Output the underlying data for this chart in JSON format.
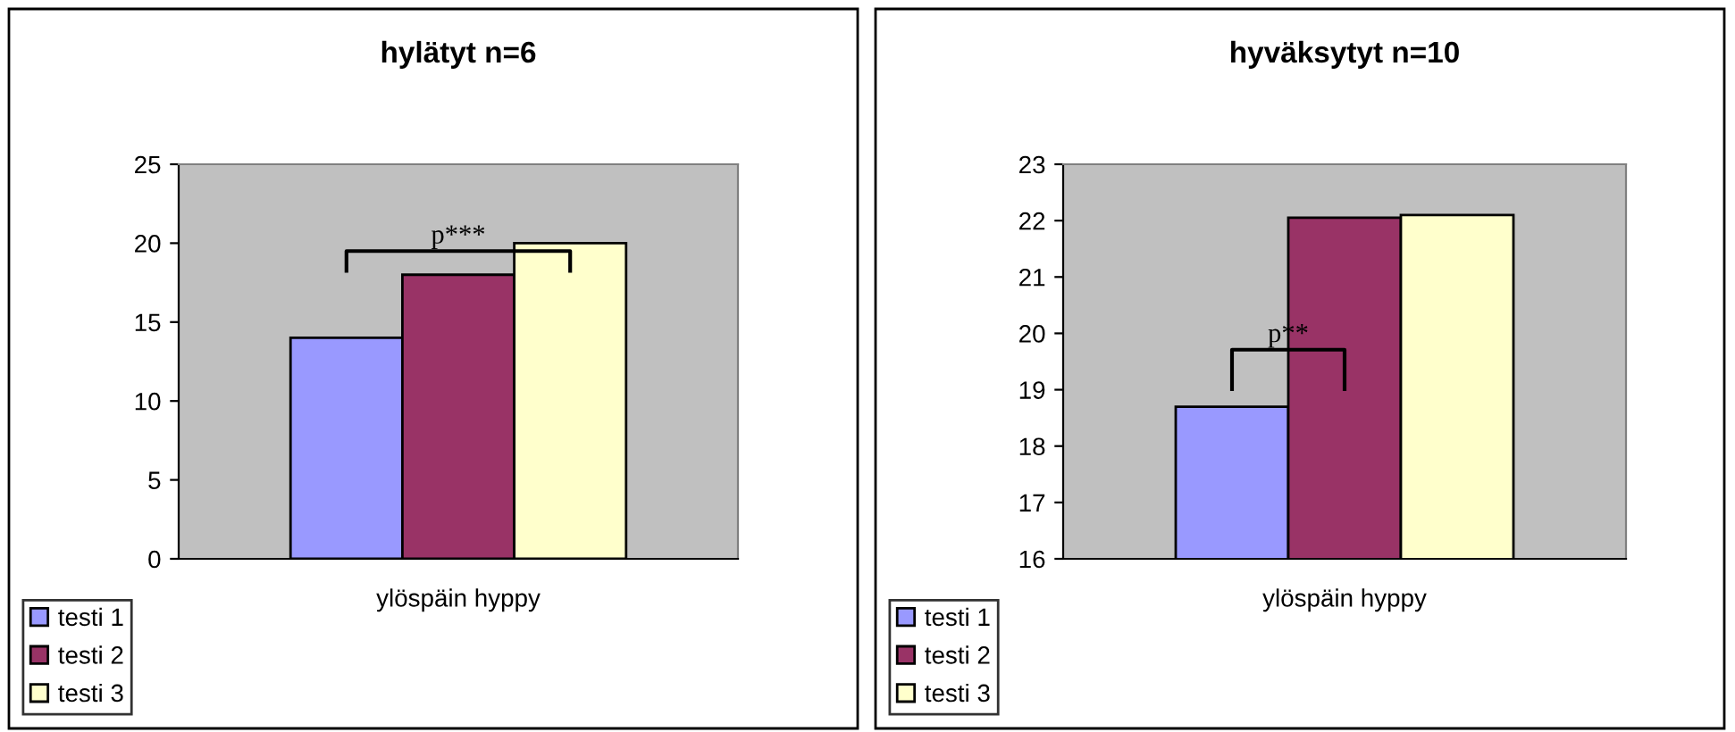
{
  "chart_data": [
    {
      "type": "bar",
      "title": "hylätyt n=6",
      "categories": [
        "ylöspäin hyppy"
      ],
      "series": [
        {
          "name": "testi 1",
          "color": "#9999ff",
          "values": [
            14
          ]
        },
        {
          "name": "testi 2",
          "color": "#993366",
          "values": [
            18
          ]
        },
        {
          "name": "testi 3",
          "color": "#ffffcc",
          "values": [
            20
          ]
        }
      ],
      "ylim": [
        0,
        25
      ],
      "yticks": [
        0,
        5,
        10,
        15,
        20,
        25
      ],
      "grid": false,
      "legend": "bottom left",
      "annotations": [
        "p***"
      ]
    },
    {
      "type": "bar",
      "title": "hyväksytyt n=10",
      "categories": [
        "ylöspäin hyppy"
      ],
      "series": [
        {
          "name": "testi 1",
          "color": "#9999ff",
          "values": [
            18.7
          ]
        },
        {
          "name": "testi 2",
          "color": "#993366",
          "values": [
            22.05
          ]
        },
        {
          "name": "testi 3",
          "color": "#ffffcc",
          "values": [
            22.1
          ]
        }
      ],
      "ylim": [
        16,
        23
      ],
      "yticks": [
        16,
        17,
        18,
        19,
        20,
        21,
        22,
        23
      ],
      "grid": false,
      "legend": "bottom left",
      "annotations": [
        "p**"
      ]
    }
  ]
}
